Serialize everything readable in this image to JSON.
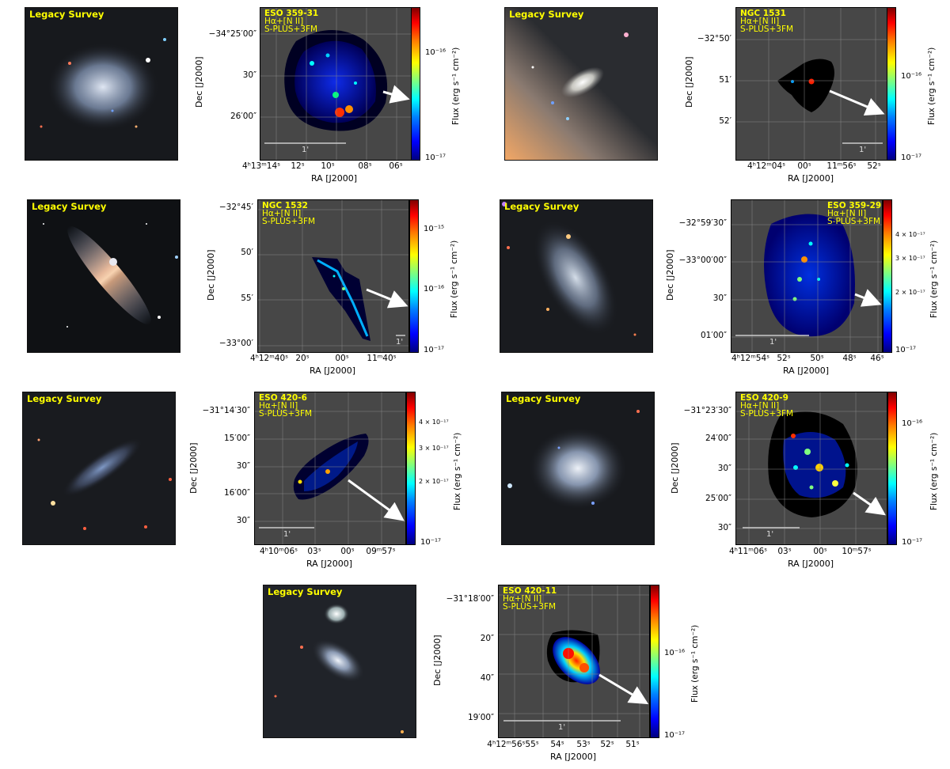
{
  "optical_label": "Legacy Survey",
  "flux_axis_label": "Flux (erg s⁻¹ cm⁻²)",
  "scale_label": "1'",
  "xlabel": "RA [J2000]",
  "ylabel": "Dec [J2000]",
  "panels": [
    {
      "name": "ESO 359-31",
      "line1": "Hα+[N II]",
      "line2": "S-PLUS+3FM",
      "yticks": [
        "−34°25′00″",
        "30″",
        "26′00″"
      ],
      "xticks": [
        "4ʰ13ᵐ14ˢ",
        "12ˢ",
        "10ˢ",
        "08ˢ",
        "06ˢ"
      ],
      "cbar": [
        "10⁻¹⁶",
        "10⁻¹⁷"
      ]
    },
    {
      "name": "NGC 1531",
      "line1": "Hα+[N II]",
      "line2": "S-PLUS+3FM",
      "yticks": [
        "−32°50′",
        "51′",
        "52′"
      ],
      "xticks": [
        "4ʰ12ᵐ04ˢ",
        "00ˢ",
        "11ᵐ56ˢ",
        "52ˢ"
      ],
      "cbar": [
        "10⁻¹⁶",
        "10⁻¹⁷"
      ]
    },
    {
      "name": "NGC 1532",
      "line1": "Hα+[N II]",
      "line2": "S-PLUS+3FM",
      "yticks": [
        "−32°45′",
        "50′",
        "55′",
        "−33°00′"
      ],
      "xticks": [
        "4ʰ12ᵐ40ˢ",
        "20ˢ",
        "00ˢ",
        "11ᵐ40ˢ"
      ],
      "cbar": [
        "10⁻¹⁵",
        "10⁻¹⁶",
        "10⁻¹⁷"
      ]
    },
    {
      "name": "ESO 359-29",
      "line1": "Hα+[N II]",
      "line2": "S-PLUS+3FM",
      "yticks": [
        "−32°59′30″",
        "−33°00′00″",
        "30″",
        "01′00″"
      ],
      "xticks": [
        "4ʰ12ᵐ54ˢ",
        "52ˢ",
        "50ˢ",
        "48ˢ",
        "46ˢ"
      ],
      "cbar": [
        "4 × 10⁻¹⁷",
        "3 × 10⁻¹⁷",
        "2 × 10⁻¹⁷",
        "10⁻¹⁷"
      ]
    },
    {
      "name": "ESO 420-6",
      "line1": "Hα+[N II]",
      "line2": "S-PLUS+3FM",
      "yticks": [
        "−31°14′30″",
        "15′00″",
        "30″",
        "16′00″",
        "30″"
      ],
      "xticks": [
        "4ʰ10ᵐ06ˢ",
        "03ˢ",
        "00ˢ",
        "09ᵐ57ˢ"
      ],
      "cbar": [
        "4 × 10⁻¹⁷",
        "3 × 10⁻¹⁷",
        "2 × 10⁻¹⁷",
        "10⁻¹⁷"
      ]
    },
    {
      "name": "ESO 420-9",
      "line1": "Hα+[N II]",
      "line2": "S-PLUS+3FM",
      "yticks": [
        "−31°23′30″",
        "24′00″",
        "30″",
        "25′00″",
        "30″"
      ],
      "xticks": [
        "4ʰ11ᵐ06ˢ",
        "03ˢ",
        "00ˢ",
        "10ᵐ57ˢ"
      ],
      "cbar": [
        "10⁻¹⁶",
        "10⁻¹⁷"
      ]
    },
    {
      "name": "ESO 420-11",
      "line1": "Hα+[N II]",
      "line2": "S-PLUS+3FM",
      "yticks": [
        "−31°18′00″",
        "20″",
        "40″",
        "19′00″"
      ],
      "xticks": [
        "4ʰ12ᵐ56ˢ55ˢ",
        "54ˢ",
        "53ˢ",
        "52ˢ",
        "51ˢ"
      ],
      "cbar": [
        "10⁻¹⁶",
        "10⁻¹⁷"
      ]
    }
  ]
}
